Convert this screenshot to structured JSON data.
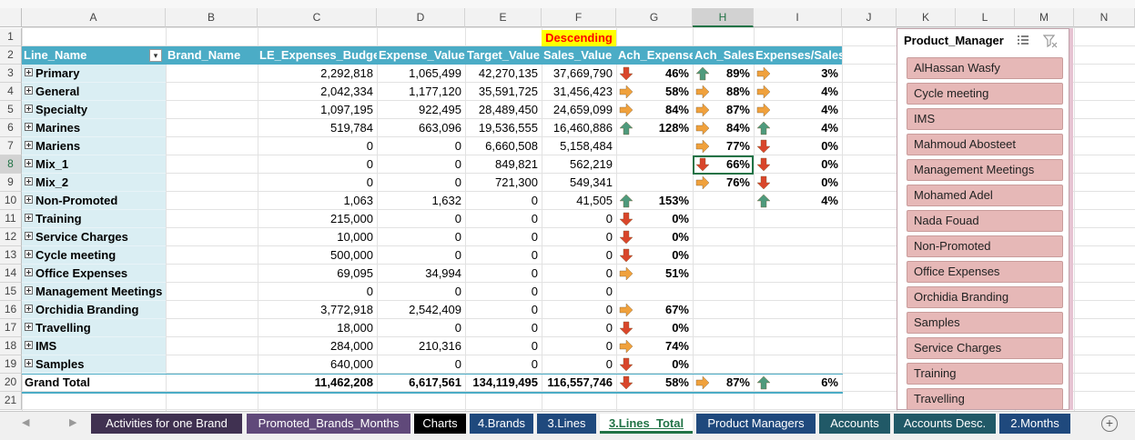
{
  "columns": [
    "A",
    "B",
    "C",
    "D",
    "E",
    "F",
    "G",
    "H",
    "I",
    "J",
    "K",
    "L",
    "M",
    "N"
  ],
  "rows": [
    "1",
    "2",
    "3",
    "4",
    "5",
    "6",
    "7",
    "8",
    "9",
    "10",
    "11",
    "12",
    "13",
    "14",
    "15",
    "16",
    "17",
    "18",
    "19",
    "20",
    "21"
  ],
  "sort_label": "Descending",
  "headers": {
    "line_name": "Line_Name",
    "brand_name": "Brand_Name",
    "le_expenses_budget": "LE_Expenses_Budget",
    "expense_value": "Expense_Value",
    "target_value": "Target_Value",
    "sales_value": "Sales_Value",
    "ach_expense": "Ach_Expense",
    "ach_sales": "Ach_Sales",
    "expenses_sales": "Expenses/Sales"
  },
  "table_rows": [
    {
      "name": "Primary",
      "budget": "2,292,818",
      "expense": "1,065,499",
      "target": "42,270,135",
      "sales": "37,669,790",
      "ach_exp_icon": "down",
      "ach_exp": "46%",
      "ach_sales_icon": "up",
      "ach_sales": "89%",
      "es_icon": "right",
      "es": "3%"
    },
    {
      "name": "General",
      "budget": "2,042,334",
      "expense": "1,177,120",
      "target": "35,591,725",
      "sales": "31,456,423",
      "ach_exp_icon": "right",
      "ach_exp": "58%",
      "ach_sales_icon": "right",
      "ach_sales": "88%",
      "es_icon": "right",
      "es": "4%"
    },
    {
      "name": "Specialty",
      "budget": "1,097,195",
      "expense": "922,495",
      "target": "28,489,450",
      "sales": "24,659,099",
      "ach_exp_icon": "right",
      "ach_exp": "84%",
      "ach_sales_icon": "right",
      "ach_sales": "87%",
      "es_icon": "right",
      "es": "4%"
    },
    {
      "name": "Marines",
      "budget": "519,784",
      "expense": "663,096",
      "target": "19,536,555",
      "sales": "16,460,886",
      "ach_exp_icon": "up",
      "ach_exp": "128%",
      "ach_sales_icon": "right",
      "ach_sales": "84%",
      "es_icon": "up",
      "es": "4%"
    },
    {
      "name": "Mariens",
      "budget": "0",
      "expense": "0",
      "target": "6,660,508",
      "sales": "5,158,484",
      "ach_exp_icon": "",
      "ach_exp": "",
      "ach_sales_icon": "right",
      "ach_sales": "77%",
      "es_icon": "down",
      "es": "0%"
    },
    {
      "name": "Mix_1",
      "budget": "0",
      "expense": "0",
      "target": "849,821",
      "sales": "562,219",
      "ach_exp_icon": "",
      "ach_exp": "",
      "ach_sales_icon": "down",
      "ach_sales": "66%",
      "es_icon": "down",
      "es": "0%"
    },
    {
      "name": "Mix_2",
      "budget": "0",
      "expense": "0",
      "target": "721,300",
      "sales": "549,341",
      "ach_exp_icon": "",
      "ach_exp": "",
      "ach_sales_icon": "right",
      "ach_sales": "76%",
      "es_icon": "down",
      "es": "0%"
    },
    {
      "name": "Non-Promoted",
      "budget": "1,063",
      "expense": "1,632",
      "target": "0",
      "sales": "41,505",
      "ach_exp_icon": "up",
      "ach_exp": "153%",
      "ach_sales_icon": "",
      "ach_sales": "",
      "es_icon": "up",
      "es": "4%"
    },
    {
      "name": "Training",
      "budget": "215,000",
      "expense": "0",
      "target": "0",
      "sales": "0",
      "ach_exp_icon": "down",
      "ach_exp": "0%",
      "ach_sales_icon": "",
      "ach_sales": "",
      "es_icon": "",
      "es": ""
    },
    {
      "name": "Service Charges",
      "budget": "10,000",
      "expense": "0",
      "target": "0",
      "sales": "0",
      "ach_exp_icon": "down",
      "ach_exp": "0%",
      "ach_sales_icon": "",
      "ach_sales": "",
      "es_icon": "",
      "es": ""
    },
    {
      "name": "Cycle meeting",
      "budget": "500,000",
      "expense": "0",
      "target": "0",
      "sales": "0",
      "ach_exp_icon": "down",
      "ach_exp": "0%",
      "ach_sales_icon": "",
      "ach_sales": "",
      "es_icon": "",
      "es": ""
    },
    {
      "name": "Office Expenses",
      "budget": "69,095",
      "expense": "34,994",
      "target": "0",
      "sales": "0",
      "ach_exp_icon": "right",
      "ach_exp": "51%",
      "ach_sales_icon": "",
      "ach_sales": "",
      "es_icon": "",
      "es": ""
    },
    {
      "name": "Management Meetings",
      "budget": "0",
      "expense": "0",
      "target": "0",
      "sales": "0",
      "ach_exp_icon": "",
      "ach_exp": "",
      "ach_sales_icon": "",
      "ach_sales": "",
      "es_icon": "",
      "es": ""
    },
    {
      "name": "Orchidia Branding",
      "budget": "3,772,918",
      "expense": "2,542,409",
      "target": "0",
      "sales": "0",
      "ach_exp_icon": "right",
      "ach_exp": "67%",
      "ach_sales_icon": "",
      "ach_sales": "",
      "es_icon": "",
      "es": ""
    },
    {
      "name": "Travelling",
      "budget": "18,000",
      "expense": "0",
      "target": "0",
      "sales": "0",
      "ach_exp_icon": "down",
      "ach_exp": "0%",
      "ach_sales_icon": "",
      "ach_sales": "",
      "es_icon": "",
      "es": ""
    },
    {
      "name": "IMS",
      "budget": "284,000",
      "expense": "210,316",
      "target": "0",
      "sales": "0",
      "ach_exp_icon": "right",
      "ach_exp": "74%",
      "ach_sales_icon": "",
      "ach_sales": "",
      "es_icon": "",
      "es": ""
    },
    {
      "name": "Samples",
      "budget": "640,000",
      "expense": "0",
      "target": "0",
      "sales": "0",
      "ach_exp_icon": "down",
      "ach_exp": "0%",
      "ach_sales_icon": "",
      "ach_sales": "",
      "es_icon": "",
      "es": ""
    }
  ],
  "grand_total": {
    "name": "Grand Total",
    "budget": "11,462,208",
    "expense": "6,617,561",
    "target": "134,119,495",
    "sales": "116,557,746",
    "ach_exp_icon": "down",
    "ach_exp": "58%",
    "ach_sales_icon": "right",
    "ach_sales": "87%",
    "es_icon": "up",
    "es": "6%"
  },
  "slicer": {
    "title": "Product_Manager",
    "items": [
      "AlHassan Wasfy",
      "Cycle meeting",
      "IMS",
      "Mahmoud Abosteet",
      "Management Meetings",
      "Mohamed Adel",
      "Nada Fouad",
      "Non-Promoted",
      "Office Expenses",
      "Orchidia Branding",
      "Samples",
      "Service Charges",
      "Training",
      "Travelling"
    ]
  },
  "tabs": [
    {
      "label": "Activities for one Brand",
      "color": "#403151"
    },
    {
      "label": "Promoted_Brands_Months",
      "color": "#60497a"
    },
    {
      "label": "Charts",
      "color": "#000000"
    },
    {
      "label": "4.Brands",
      "color": "#1f497d"
    },
    {
      "label": "3.Lines",
      "color": "#1f497d"
    },
    {
      "label": "3.Lines_Total",
      "color": "#ffffff",
      "active": true
    },
    {
      "label": "Product Managers",
      "color": "#1f497d"
    },
    {
      "label": "Accounts",
      "color": "#215967"
    },
    {
      "label": "Accounts Desc.",
      "color": "#215967"
    },
    {
      "label": "2.Months",
      "color": "#1f497d"
    }
  ],
  "colors": {
    "header_blue": "#4bacc6",
    "name_fill": "#daeef3",
    "up": "#4f9a7c",
    "down": "#d9462b",
    "right": "#f0a13c",
    "slicer_item": "#e6b8b7"
  }
}
